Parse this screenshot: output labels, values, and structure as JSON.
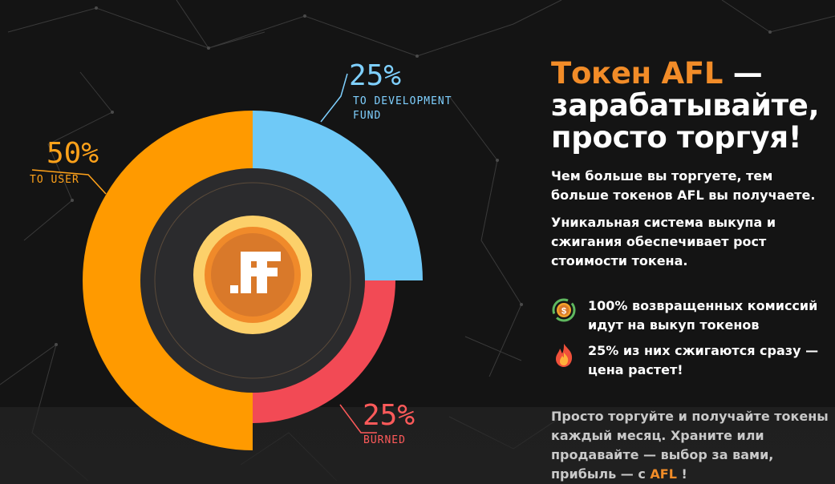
{
  "chart_data": {
    "type": "pie",
    "slices": [
      {
        "percent_label": "50%",
        "label": "TO USER",
        "value": 50,
        "color": "#ff9a00"
      },
      {
        "percent_label": "25%",
        "label_lines": [
          "TO DEVELOPMENT",
          "FUND"
        ],
        "value": 25,
        "color": "#6fc9f7"
      },
      {
        "percent_label": "25%",
        "label": "BURNED",
        "value": 25,
        "color": "#f24a55"
      }
    ],
    "center_logo": ".IF"
  },
  "colors": {
    "accent": "#f28c28",
    "user": "#ff9a00",
    "dev": "#6fc9f7",
    "burned": "#f24a55",
    "label_dev": "#7fd0ff",
    "label_burned": "#ff5a5a",
    "label_user": "#ffa21a"
  },
  "heading": {
    "accent": "Токен AFL",
    "rest": " —",
    "line2": "зарабатывайте,",
    "line3": "просто торгуя!"
  },
  "paragraph1": "Чем больше вы торгуете, тем больше токенов AFL вы получаете.",
  "paragraph2": "Уникальная система выкупа и сжигания обеспечивает рост стоимости токена.",
  "features": [
    {
      "icon": "coin-cycle-icon",
      "text": "100% возвращенных комиссий идут на выкуп токенов"
    },
    {
      "icon": "fire-icon",
      "text": "25% из них сжигаются сразу — цена растет!"
    }
  ],
  "footer": {
    "text": "Просто торгуйте и получайте токены каждый месяц. Храните или продавайте — выбор за вами, прибыль — с ",
    "accent": "AFL",
    "end": " !"
  }
}
